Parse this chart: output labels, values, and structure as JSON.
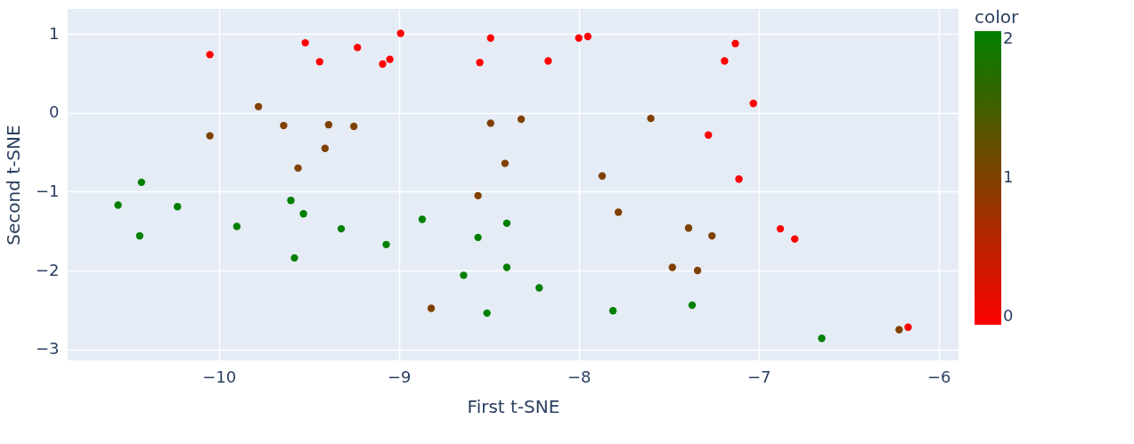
{
  "chart_data": {
    "type": "scatter",
    "xlabel": "First t-SNE",
    "ylabel": "Second t-SNE",
    "clabel": "color",
    "xlim": [
      -10.84,
      -5.89
    ],
    "xticks": [
      -10,
      -9,
      -8,
      -7,
      -6
    ],
    "ylim": [
      -3.14,
      1.32
    ],
    "yticks": [
      -3,
      -2,
      -1,
      0,
      1
    ],
    "clim": [
      0,
      2
    ],
    "cticks": [
      0,
      1,
      2
    ],
    "grid": true,
    "marker": "circle",
    "series": [
      {
        "x": [
          -10.05,
          -9.52,
          -9.44,
          -9.23,
          -9.09,
          -9.05,
          -8.99,
          -8.55,
          -8.49,
          -8.0,
          -7.95,
          -8.17,
          -7.13,
          -7.19,
          -7.03,
          -7.28,
          -7.11,
          -6.88,
          -6.8,
          -6.17,
          -9.78,
          -9.64,
          -9.39,
          -9.25,
          -10.05,
          -9.41,
          -9.56,
          -8.49,
          -8.41,
          -8.32,
          -7.6,
          -7.87,
          -7.78,
          -7.39,
          -7.26,
          -7.48,
          -7.34,
          -6.22,
          -8.56,
          -8.82,
          -10.43,
          -10.56,
          -10.23,
          -10.44,
          -9.9,
          -9.6,
          -9.53,
          -9.32,
          -9.58,
          -9.07,
          -8.87,
          -8.4,
          -8.56,
          -8.4,
          -8.64,
          -8.51,
          -8.22,
          -7.81,
          -7.37,
          -6.65
        ],
        "values": [
          0.74,
          0.89,
          0.65,
          0.83,
          0.62,
          0.68,
          1.01,
          0.64,
          0.95,
          0.95,
          0.97,
          0.66,
          0.88,
          0.66,
          0.12,
          -0.28,
          -0.84,
          -1.47,
          -1.6,
          -2.72,
          0.08,
          -0.16,
          -0.15,
          -0.17,
          -0.29,
          -0.45,
          -0.7,
          -0.13,
          -0.64,
          -0.08,
          -0.07,
          -0.8,
          -1.26,
          -1.46,
          -1.56,
          -1.96,
          -2.0,
          -2.75,
          -1.05,
          -2.48,
          -0.88,
          -1.17,
          -1.19,
          -1.56,
          -1.44,
          -1.11,
          -1.28,
          -1.47,
          -1.84,
          -1.67,
          -1.35,
          -1.4,
          -1.58,
          -1.96,
          -2.06,
          -2.54,
          -2.22,
          -2.51,
          -2.44,
          -2.86
        ],
        "cvalues": [
          0,
          0,
          0,
          0,
          0,
          0,
          0,
          0,
          0,
          0,
          0,
          0,
          0,
          0,
          0,
          0,
          0,
          0,
          0,
          0,
          1,
          1,
          1,
          1,
          1,
          1,
          1,
          1,
          1,
          1,
          1,
          1,
          1,
          1,
          1,
          1,
          1,
          1,
          1,
          1,
          2,
          2,
          2,
          2,
          2,
          2,
          2,
          2,
          2,
          2,
          2,
          2,
          2,
          2,
          2,
          2,
          2,
          2,
          2,
          2
        ]
      }
    ]
  }
}
